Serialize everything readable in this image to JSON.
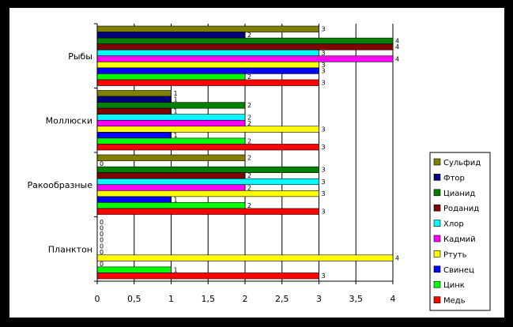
{
  "chart_data": {
    "type": "bar",
    "orientation": "horizontal",
    "categories": [
      "Рыбы",
      "Моллюски",
      "Ракообразные",
      "Планктон"
    ],
    "series": [
      {
        "name": "Сульфид",
        "color": "#808000",
        "values": [
          3,
          1,
          2,
          0
        ]
      },
      {
        "name": "Фтор",
        "color": "#000080",
        "values": [
          2,
          1,
          0,
          0
        ]
      },
      {
        "name": "Цианид",
        "color": "#008000",
        "values": [
          4,
          2,
          3,
          0
        ]
      },
      {
        "name": "Роданид",
        "color": "#800000",
        "values": [
          4,
          1,
          2,
          0
        ]
      },
      {
        "name": "Хлор",
        "color": "#00FFFF",
        "values": [
          3,
          2,
          3,
          0
        ]
      },
      {
        "name": "Кадмий",
        "color": "#FF00FF",
        "values": [
          4,
          2,
          2,
          0
        ]
      },
      {
        "name": "Ртуть",
        "color": "#FFFF00",
        "values": [
          3,
          3,
          3,
          4
        ]
      },
      {
        "name": "Свинец",
        "color": "#0000FF",
        "values": [
          3,
          1,
          1,
          0
        ]
      },
      {
        "name": "Цинк",
        "color": "#00FF00",
        "values": [
          2,
          2,
          2,
          1
        ]
      },
      {
        "name": "Медь",
        "color": "#FF0000",
        "values": [
          3,
          3,
          3,
          3
        ]
      }
    ],
    "xlim": [
      0,
      4
    ],
    "xticks": [
      "0",
      "0,5",
      "1",
      "1,5",
      "2",
      "2,5",
      "3",
      "3,5",
      "4"
    ],
    "grid": true,
    "legend": "right"
  }
}
